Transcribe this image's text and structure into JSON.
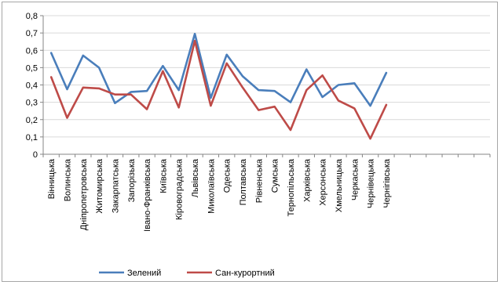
{
  "chart_data": {
    "type": "line",
    "categories": [
      "Вінницька",
      "Волинська",
      "Дніпропетровська",
      "Житомирська",
      "Закарпатська",
      "Запорізька",
      "Івано-Франківська",
      "Київська",
      "Кіровоградська",
      "Львівська",
      "Миколаївська",
      "Одеська",
      "Полтавська",
      "Рівненська",
      "Сумська",
      "Тернопільська",
      "Харківська",
      "Херсонська",
      "Хмельницька",
      "Черкаська",
      "Чернівецька",
      "Чернігівська"
    ],
    "series": [
      {
        "name": "Зелений",
        "color": "#4a7ebb",
        "values": [
          0.585,
          0.375,
          0.57,
          0.5,
          0.295,
          0.36,
          0.365,
          0.51,
          0.37,
          0.695,
          0.325,
          0.575,
          0.45,
          0.37,
          0.365,
          0.3,
          0.49,
          0.33,
          0.4,
          0.41,
          0.28,
          0.47
        ]
      },
      {
        "name": "Сан-курортний",
        "color": "#be4b48",
        "values": [
          0.445,
          0.21,
          0.385,
          0.38,
          0.345,
          0.345,
          0.26,
          0.48,
          0.27,
          0.655,
          0.28,
          0.525,
          0.385,
          0.255,
          0.275,
          0.14,
          0.37,
          0.455,
          0.31,
          0.265,
          0.09,
          0.285
        ]
      }
    ],
    "yticks": [
      "0",
      "0,1",
      "0,2",
      "0,3",
      "0,4",
      "0,5",
      "0,6",
      "0,7",
      "0,8"
    ],
    "ylim": [
      0,
      0.8
    ],
    "grid": "horizontal",
    "legend_position": "bottom"
  }
}
